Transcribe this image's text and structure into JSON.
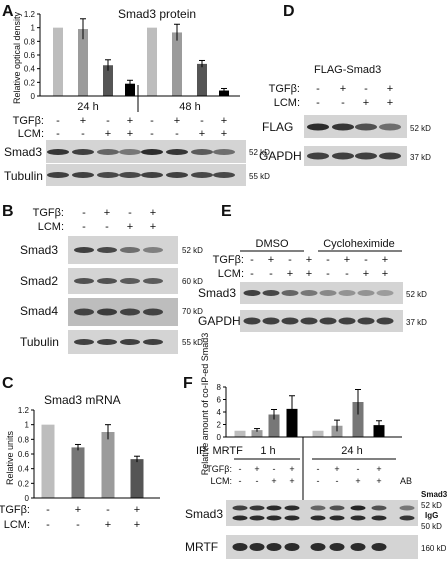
{
  "panels": {
    "A": {
      "letter": "A",
      "chart_data": {
        "type": "bar",
        "title": "Smad3 protein",
        "ylabel": "Relative optical density",
        "ylim": [
          0,
          1.2
        ],
        "yticks": [
          "0",
          "0.2",
          "0.4",
          "0.6",
          "0.8",
          "1",
          "1.2"
        ],
        "groups": [
          "24 h",
          "48 h"
        ],
        "values": [
          1.0,
          0.98,
          0.45,
          0.18,
          1.0,
          0.93,
          0.47,
          0.08
        ],
        "errors": [
          0,
          0.15,
          0.08,
          0.05,
          0,
          0.12,
          0.05,
          0.03
        ],
        "colors": [
          "#bdbdbd",
          "#9b9b9b",
          "#555555",
          "#000000",
          "#bdbdbd",
          "#9b9b9b",
          "#555555",
          "#000000"
        ]
      },
      "treatments": [
        {
          "label": "TGFβ:",
          "signs": [
            "-",
            "+",
            "-",
            "+",
            "-",
            "+",
            "-",
            "+"
          ]
        },
        {
          "label": "LCM:",
          "signs": [
            "-",
            "-",
            "+",
            "+",
            "-",
            "-",
            "+",
            "+"
          ]
        }
      ],
      "blots": [
        {
          "label": "Smad3",
          "size": "52 kD"
        },
        {
          "label": "Tubulin",
          "size": "55 kD"
        }
      ]
    },
    "B": {
      "letter": "B",
      "treatments": [
        {
          "label": "TGFβ:",
          "signs": [
            "-",
            "+",
            "-",
            "+"
          ]
        },
        {
          "label": "LCM:",
          "signs": [
            "-",
            "-",
            "+",
            "+"
          ]
        }
      ],
      "blots": [
        {
          "label": "Smad3",
          "size": "52 kD"
        },
        {
          "label": "Smad2",
          "size": "60 kD"
        },
        {
          "label": "Smad4",
          "size": "70 kD"
        },
        {
          "label": "Tubulin",
          "size": "55 kD"
        }
      ]
    },
    "C": {
      "letter": "C",
      "chart_data": {
        "type": "bar",
        "title": "Smad3 mRNA",
        "ylabel": "Relative units",
        "ylim": [
          0,
          1.2
        ],
        "yticks": [
          "0",
          "0.2",
          "0.4",
          "0.6",
          "0.8",
          "1",
          "1.2"
        ],
        "values": [
          1.0,
          0.69,
          0.9,
          0.53
        ],
        "errors": [
          0,
          0.04,
          0.1,
          0.04
        ],
        "colors": [
          "#bdbdbd",
          "#777777",
          "#9b9b9b",
          "#555555"
        ]
      },
      "treatments": [
        {
          "label": "TGFβ:",
          "signs": [
            "-",
            "+",
            "-",
            "+"
          ]
        },
        {
          "label": "LCM:",
          "signs": [
            "-",
            "-",
            "+",
            "+"
          ]
        }
      ]
    },
    "D": {
      "letter": "D",
      "title": "FLAG-Smad3",
      "treatments": [
        {
          "label": "TGFβ:",
          "signs": [
            "-",
            "+",
            "-",
            "+"
          ]
        },
        {
          "label": "LCM:",
          "signs": [
            "-",
            "-",
            "+",
            "+"
          ]
        }
      ],
      "blots": [
        {
          "label": "FLAG",
          "size": "52 kD"
        },
        {
          "label": "GAPDH",
          "size": "37 kD"
        }
      ]
    },
    "E": {
      "letter": "E",
      "groups": [
        "DMSO",
        "Cycloheximide"
      ],
      "treatments": [
        {
          "label": "TGFβ:",
          "signs": [
            "-",
            "+",
            "-",
            "+",
            "-",
            "+",
            "-",
            "+"
          ]
        },
        {
          "label": "LCM:",
          "signs": [
            "-",
            "-",
            "+",
            "+",
            "-",
            "-",
            "+",
            "+"
          ]
        }
      ],
      "blots": [
        {
          "label": "Smad3",
          "size": "52 kD"
        },
        {
          "label": "GAPDH",
          "size": "37 kD"
        }
      ]
    },
    "F": {
      "letter": "F",
      "chart_data": {
        "type": "bar",
        "ylabel": "Relative amount of co-IP-ed Smad3",
        "ylim": [
          0,
          8
        ],
        "yticks": [
          "0",
          "2",
          "4",
          "6",
          "8"
        ],
        "groups": [
          "1 h",
          "24 h"
        ],
        "values": [
          1.0,
          1.1,
          3.6,
          4.5,
          1.0,
          1.8,
          5.6,
          1.9
        ],
        "errors": [
          0,
          0.25,
          0.8,
          2.1,
          0,
          0.9,
          2.0,
          0.7
        ],
        "colors": [
          "#bdbdbd",
          "#9b9b9b",
          "#777777",
          "#000000",
          "#bdbdbd",
          "#9b9b9b",
          "#777777",
          "#000000"
        ]
      },
      "ip_label": "IP: MRTF",
      "ab_label": "AB",
      "treatments": [
        {
          "label": "TGFβ:",
          "signs": [
            "-",
            "+",
            "-",
            "+",
            "-",
            "+",
            "-",
            "+"
          ]
        },
        {
          "label": "LCM:",
          "signs": [
            "-",
            "-",
            "+",
            "+",
            "-",
            "-",
            "+",
            "+"
          ]
        }
      ],
      "blots": [
        {
          "label": "Smad3",
          "size": "52 kD"
        },
        {
          "label": "MRTF",
          "size": "160 kD"
        }
      ],
      "side_labels": {
        "smad3": "Smad3",
        "igg": "IgG",
        "kd50": "50 kD"
      }
    }
  }
}
